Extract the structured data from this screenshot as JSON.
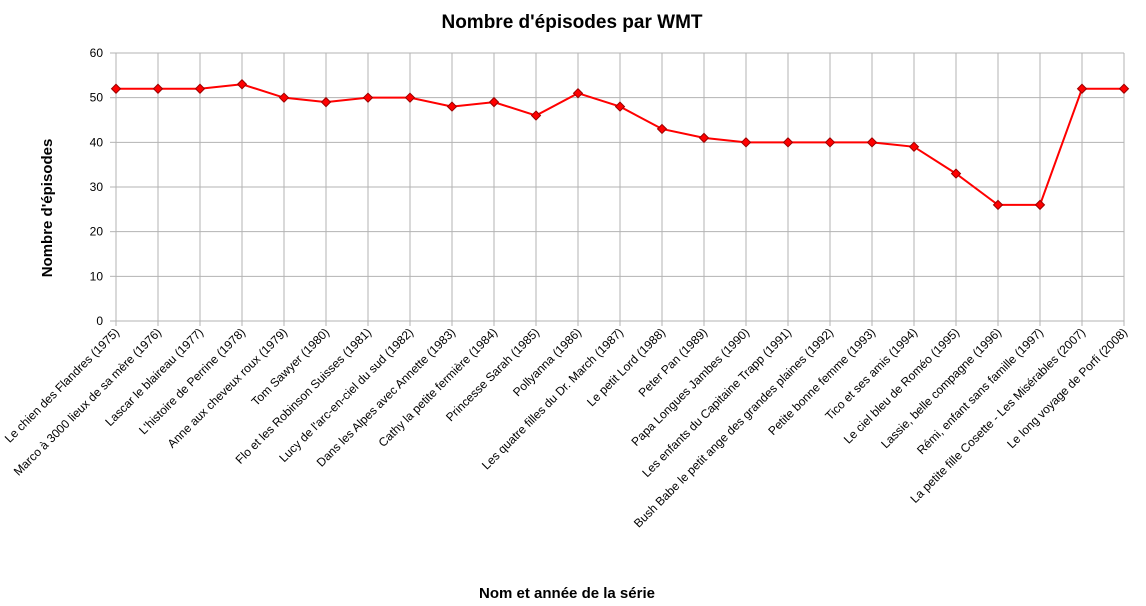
{
  "chart_data": {
    "type": "line",
    "title": "Nombre d'épisodes par WMT",
    "xlabel": "Nom et année de la série",
    "ylabel": "Nombre d'épisodes",
    "ylim": [
      0,
      60
    ],
    "yticks": [
      0,
      10,
      20,
      30,
      40,
      50,
      60
    ],
    "grid": true,
    "legend": "none",
    "colors": {
      "line": "#ff0000",
      "marker_edge": "#990000",
      "grid": "#b3b3b3"
    },
    "categories": [
      "Le chien des Flandres (1975)",
      "Marco à 3000 lieux de sa mère (1976)",
      "Lascar le blaireau (1977)",
      "L'histoire de Perrine (1978)",
      "Anne aux cheveux roux (1979)",
      "Tom Sawyer (1980)",
      "Flo et les Robinson Suisses (1981)",
      "Lucy de l'arc-en-ciel du sud (1982)",
      "Dans les Alpes avec Annette (1983)",
      "Cathy la petite fermière (1984)",
      "Princesse Sarah (1985)",
      "Pollyanna (1986)",
      "Les quatre filles du Dr. March (1987)",
      "Le petit Lord (1988)",
      "Peter Pan (1989)",
      "Papa Longues Jambes (1990)",
      "Les enfants du Capitaine Trapp (1991)",
      "Bush Babe le petit ange des grandes plaines (1992)",
      "Petite bonne femme (1993)",
      "Tico et ses amis (1994)",
      "Le ciel bleu de Roméo (1995)",
      "Lassie, belle compagne (1996)",
      "Rémi, enfant sans famille (1997)",
      "La petite fille Cosette - Les Misérables (2007)",
      "Le long voyage de Porfi (2008)"
    ],
    "series": [
      {
        "values": [
          52,
          52,
          52,
          53,
          50,
          49,
          50,
          50,
          48,
          49,
          46,
          51,
          48,
          43,
          41,
          40,
          40,
          40,
          40,
          39,
          33,
          26,
          26,
          52,
          52
        ]
      }
    ]
  }
}
